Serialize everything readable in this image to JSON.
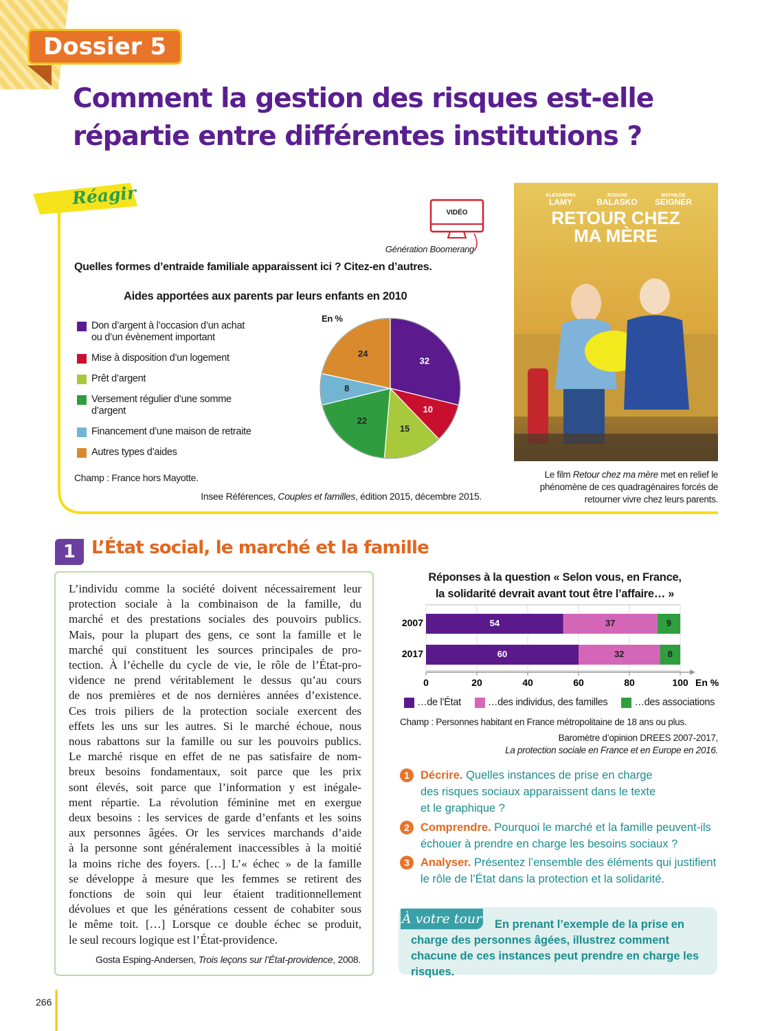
{
  "header": {
    "dossier": "Dossier 5",
    "title_lines": [
      "Comment la gestion des risques est-elle",
      "répartie entre différentes institutions ?"
    ]
  },
  "reagir": {
    "label": "Réagir",
    "video_label": "VIDÉO",
    "video_name": "Génération Boomerang",
    "question": "Quelles formes d’entraide familiale apparaissent ici ? Citez-en d’autres.",
    "scope": "Champ : France hors Mayotte.",
    "source": {
      "pre": "Insee Références, ",
      "work": "Couples et familles",
      "post": ", édition 2015, décembre 2015."
    },
    "poster": {
      "actors": [
        {
          "first": "ALEXANDRA",
          "last": "LAMY"
        },
        {
          "first": "JOSIANE",
          "last": "BALASKO"
        },
        {
          "first": "MATHILDE",
          "last": "SEIGNER"
        }
      ],
      "title_lines": [
        "RETOUR CHEZ",
        "MA MÈRE"
      ]
    },
    "caption": {
      "pre": "Le film ",
      "work": "Retour chez ma mère",
      "post": " met en relief le phénomène de ces quadragénaires forcés de retourner vivre chez leurs parents."
    }
  },
  "chart_data": [
    {
      "type": "pie",
      "title": "Aides apportées aux parents par leurs enfants en 2010",
      "unit_label": "En %",
      "categories": [
        "Don d’argent à l’occasion d’un achat ou d’un évènement important",
        "Mise à disposition d’un logement",
        "Prêt d’argent",
        "Versement régulier d’une somme d’argent",
        "Financement d’une maison de retraite",
        "Autres types d’aides"
      ],
      "values": [
        32,
        10,
        15,
        22,
        8,
        24
      ],
      "colors": [
        "#5b1b8e",
        "#c8102e",
        "#a8c93c",
        "#2f9d3f",
        "#72b5d3",
        "#d98a2c"
      ]
    },
    {
      "type": "bar",
      "orientation": "horizontal",
      "stacked": true,
      "title_lines": [
        "Réponses à la question « Selon vous, en France,",
        "la solidarité devrait avant tout être l’affaire… »"
      ],
      "categories": [
        "2007",
        "2017"
      ],
      "series": [
        {
          "name": "…de l’État",
          "color": "#5a1a8c",
          "values": [
            54,
            60
          ]
        },
        {
          "name": "…des individus, des familles",
          "color": "#d466b8",
          "values": [
            37,
            32
          ]
        },
        {
          "name": "…des associations",
          "color": "#2e9e3e",
          "values": [
            9,
            8
          ]
        }
      ],
      "xlim": [
        0,
        100
      ],
      "xticks": [
        0,
        20,
        40,
        60,
        80,
        100
      ],
      "x_unit_label": "En %",
      "grid": true
    }
  ],
  "document": {
    "number": "1",
    "title": "L’État social, le marché et la famille",
    "text_lines": [
      "L’individu comme la société doivent nécessairement leur",
      "protection sociale à la combinaison de la famille, du",
      "marché et des prestations sociales des pouvoirs publics.",
      "Mais, pour la plupart des gens, ce sont la famille et le",
      "marché qui constituent les sources principales de pro-",
      "tection. À l’échelle du cycle de vie, le rôle de l’État-pro-",
      "vidence ne prend véritablement le dessus qu’au cours",
      "de nos premières et de nos dernières années d’existence.",
      "Ces trois piliers de la protection sociale exercent des",
      "effets les uns sur les autres. Si le marché échoue, nous",
      "nous rabattons sur la famille ou sur les pouvoirs publics.",
      "Le marché risque en effet de ne pas satisfaire de nom-",
      "breux besoins fondamentaux, soit parce que les prix",
      "sont élevés, soit parce que l’information y est inégale-",
      "ment répartie. La révolution féminine met en exergue",
      "deux besoins : les services de garde d’enfants et les soins",
      "aux personnes âgées. Or les services marchands d’aide",
      "à la personne sont généralement inaccessibles à la moitié",
      "la moins riche des foyers. […] L’« échec » de la famille",
      "se développe à mesure que les femmes se retirent des",
      "fonctions de soin qui leur étaient traditionnellement",
      "dévolues et que les générations cessent de cohabiter sous",
      "le même toit. […] Lorsque ce double échec se produit,",
      "le seul recours logique est l’État-providence."
    ],
    "source": {
      "pre": "Gosta Esping-Andersen, ",
      "work": "Trois leçons sur l’État-providence",
      "post": ", 2008."
    },
    "chart_scope": "Champ : Personnes habitant en France métropolitaine de 18 ans ou plus.",
    "chart_source": {
      "pre": "Baromètre d’opinion DREES 2007-2017,",
      "work": "La protection sociale en France et en Europe en 2016."
    }
  },
  "questions": [
    {
      "number": "1",
      "label": "Décrire.",
      "text": "Quelles instances de prise en charge des risques sociaux apparaissent dans le texte et le graphique ?"
    },
    {
      "number": "2",
      "label": "Comprendre.",
      "text": "Pourquoi le marché et la famille peuvent-ils échouer à prendre en charge les besoins sociaux ?"
    },
    {
      "number": "3",
      "label": "Analyser.",
      "text": "Présentez l’ensemble des éléments qui justifient le rôle de l’État dans la protection et la solidarité."
    }
  ],
  "a_votre_tour": {
    "label": "À votre tour",
    "text": "En prenant l’exemple de la prise en charge des personnes âgées, illustrez comment chacune de ces instances peut prendre en charge les risques."
  },
  "page_number": "266"
}
